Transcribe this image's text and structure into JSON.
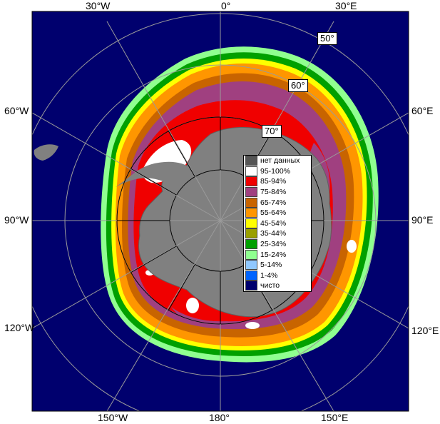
{
  "map": {
    "longitude_labels": {
      "top_left": "30°W",
      "top_center": "0°",
      "top_right": "30°E",
      "left_upper": "60°W",
      "left_middle": "90°W",
      "left_lower": "120°W",
      "right_upper": "60°E",
      "right_middle": "90°E",
      "right_lower": "120°E",
      "bottom_left": "150°W",
      "bottom_center": "180°",
      "bottom_right": "150°E"
    },
    "latitude_labels": {
      "lat50": "50°",
      "lat60": "60°",
      "lat70": "70°"
    },
    "colors": {
      "ocean": "#00006e",
      "land": "#808080",
      "grid": "#9a9a9a"
    }
  },
  "legend": {
    "items": [
      {
        "label": "нет данных",
        "color": "#555555"
      },
      {
        "label": "95-100%",
        "color": "#ffffff"
      },
      {
        "label": "85-94%",
        "color": "#f00000"
      },
      {
        "label": "75-84%",
        "color": "#a04080"
      },
      {
        "label": "65-74%",
        "color": "#c86400"
      },
      {
        "label": "55-64%",
        "color": "#ff9600"
      },
      {
        "label": "45-54%",
        "color": "#ffff00"
      },
      {
        "label": "35-44%",
        "color": "#9aa000"
      },
      {
        "label": "25-34%",
        "color": "#00a000"
      },
      {
        "label": "15-24%",
        "color": "#90ff90"
      },
      {
        "label": "5-14%",
        "color": "#90c8ff"
      },
      {
        "label": "1-4%",
        "color": "#0064ff"
      },
      {
        "label": "чисто",
        "color": "#00006e"
      }
    ]
  }
}
